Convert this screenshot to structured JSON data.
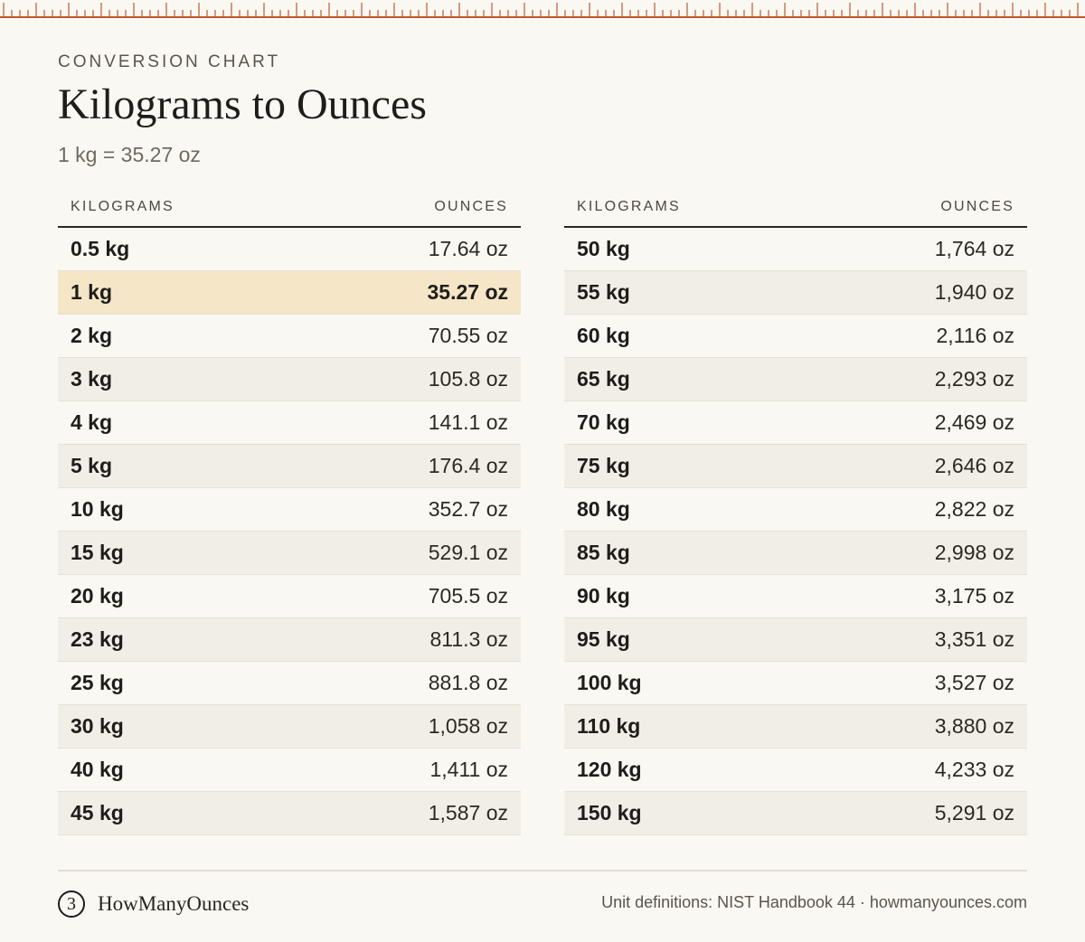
{
  "header": {
    "eyebrow": "CONVERSION CHART",
    "title": "Kilograms to Ounces",
    "subtitle": "1 kg = 35.27 oz"
  },
  "tables": [
    {
      "col_kg": "KILOGRAMS",
      "col_oz": "OUNCES",
      "rows": [
        {
          "kg": "0.5 kg",
          "oz": "17.64 oz"
        },
        {
          "kg": "1 kg",
          "oz": "35.27 oz",
          "highlight": true
        },
        {
          "kg": "2 kg",
          "oz": "70.55 oz"
        },
        {
          "kg": "3 kg",
          "oz": "105.8 oz"
        },
        {
          "kg": "4 kg",
          "oz": "141.1 oz"
        },
        {
          "kg": "5 kg",
          "oz": "176.4 oz"
        },
        {
          "kg": "10 kg",
          "oz": "352.7 oz"
        },
        {
          "kg": "15 kg",
          "oz": "529.1 oz"
        },
        {
          "kg": "20 kg",
          "oz": "705.5 oz"
        },
        {
          "kg": "23 kg",
          "oz": "811.3 oz"
        },
        {
          "kg": "25 kg",
          "oz": "881.8 oz"
        },
        {
          "kg": "30 kg",
          "oz": "1,058 oz"
        },
        {
          "kg": "40 kg",
          "oz": "1,411 oz"
        },
        {
          "kg": "45 kg",
          "oz": "1,587 oz"
        }
      ]
    },
    {
      "col_kg": "KILOGRAMS",
      "col_oz": "OUNCES",
      "rows": [
        {
          "kg": "50 kg",
          "oz": "1,764 oz"
        },
        {
          "kg": "55 kg",
          "oz": "1,940 oz"
        },
        {
          "kg": "60 kg",
          "oz": "2,116 oz"
        },
        {
          "kg": "65 kg",
          "oz": "2,293 oz"
        },
        {
          "kg": "70 kg",
          "oz": "2,469 oz"
        },
        {
          "kg": "75 kg",
          "oz": "2,646 oz"
        },
        {
          "kg": "80 kg",
          "oz": "2,822 oz"
        },
        {
          "kg": "85 kg",
          "oz": "2,998 oz"
        },
        {
          "kg": "90 kg",
          "oz": "3,175 oz"
        },
        {
          "kg": "95 kg",
          "oz": "3,351 oz"
        },
        {
          "kg": "100 kg",
          "oz": "3,527 oz"
        },
        {
          "kg": "110 kg",
          "oz": "3,880 oz"
        },
        {
          "kg": "120 kg",
          "oz": "4,233 oz"
        },
        {
          "kg": "150 kg",
          "oz": "5,291 oz"
        }
      ]
    }
  ],
  "footer": {
    "logo_glyph": "3",
    "logo_icon": "scale-logo-icon",
    "brand": "HowManyOunces",
    "source": "Unit definitions: NIST Handbook 44 · howmanyounces.com"
  },
  "colors": {
    "ruler": "#c0582c",
    "highlight": "#f4e6c6",
    "background": "#faf8f3"
  }
}
